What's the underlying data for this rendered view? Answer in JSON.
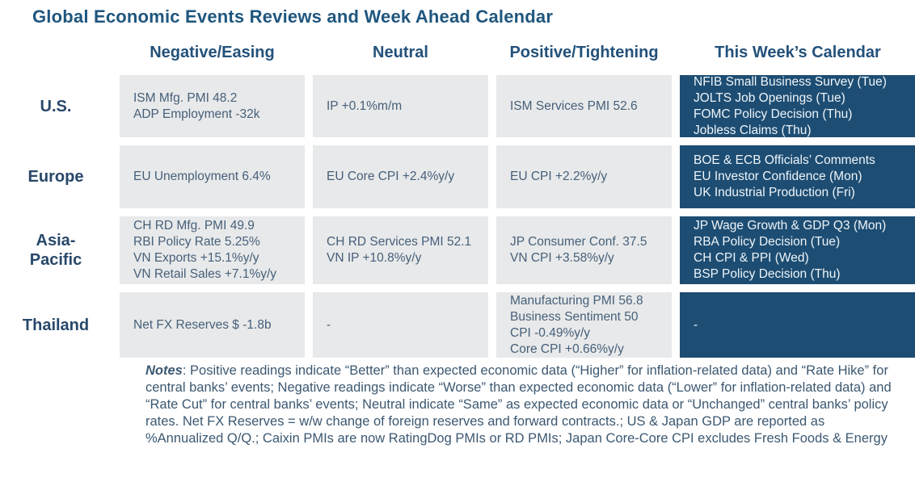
{
  "title": "Global Economic Events Reviews and Week Ahead Calendar",
  "colors": {
    "title_text": "#1f567e",
    "header_text": "#23517a",
    "row_label_text": "#28486a",
    "light_cell_bg": "#e8e9ea",
    "light_cell_text": "#46607a",
    "calendar_cell_bg": "#1d4d73",
    "calendar_cell_text": "#eef4f8",
    "notes_text": "#3c5871"
  },
  "table": {
    "column_headers": [
      "Negative/Easing",
      "Neutral",
      "Positive/Tightening",
      "This Week’s Calendar"
    ],
    "rows": [
      {
        "region": "U.S.",
        "negative": [
          "ISM Mfg. PMI 48.2",
          "ADP Employment -32k"
        ],
        "neutral": [
          "IP +0.1%m/m"
        ],
        "positive": [
          "ISM Services PMI 52.6"
        ],
        "calendar": [
          "NFIB Small Business Survey (Tue)",
          "JOLTS Job Openings (Tue)",
          "FOMC Policy Decision (Thu)",
          "Jobless Claims (Thu)"
        ]
      },
      {
        "region": "Europe",
        "negative": [
          "EU Unemployment 6.4%"
        ],
        "neutral": [
          "EU Core CPI +2.4%y/y"
        ],
        "positive": [
          "EU CPI +2.2%y/y"
        ],
        "calendar": [
          "BOE & ECB Officials’ Comments",
          "EU Investor Confidence (Mon)",
          "UK Industrial Production (Fri)"
        ]
      },
      {
        "region": "Asia-Pacific",
        "negative": [
          "CH RD Mfg. PMI 49.9",
          "RBI Policy Rate 5.25%",
          "VN Exports +15.1%y/y",
          "VN Retail Sales +7.1%y/y"
        ],
        "neutral": [
          "CH RD Services PMI 52.1",
          "VN IP +10.8%y/y"
        ],
        "positive": [
          "JP Consumer Conf. 37.5",
          "VN CPI +3.58%y/y"
        ],
        "calendar": [
          "JP Wage Growth & GDP Q3 (Mon)",
          "RBA Policy Decision (Tue)",
          "CH CPI & PPI (Wed)",
          "BSP Policy Decision (Thu)"
        ]
      },
      {
        "region": "Thailand",
        "negative": [
          "Net FX Reserves $ -1.8b"
        ],
        "neutral": [
          "-"
        ],
        "positive": [
          "Manufacturing PMI 56.8",
          "Business Sentiment 50",
          "CPI -0.49%y/y",
          "Core CPI +0.66%y/y"
        ],
        "calendar": [
          "-"
        ]
      }
    ]
  },
  "notes": {
    "label": "Notes",
    "body": ": Positive readings indicate “Better” than expected economic data (“Higher” for inflation-related data) and “Rate Hike” for central banks’ events; Negative readings indicate “Worse” than expected economic data (“Lower” for inflation-related data) and “Rate Cut” for central banks’ events; Neutral indicate “Same” as expected economic data or “Unchanged” central banks’ policy rates. Net FX Reserves = w/w change of foreign reserves and forward contracts.; US & Japan GDP are reported as %Annualized Q/Q.; Caixin PMIs are now RatingDog PMIs or RD PMIs; Japan Core-Core CPI excludes Fresh Foods & Energy"
  }
}
